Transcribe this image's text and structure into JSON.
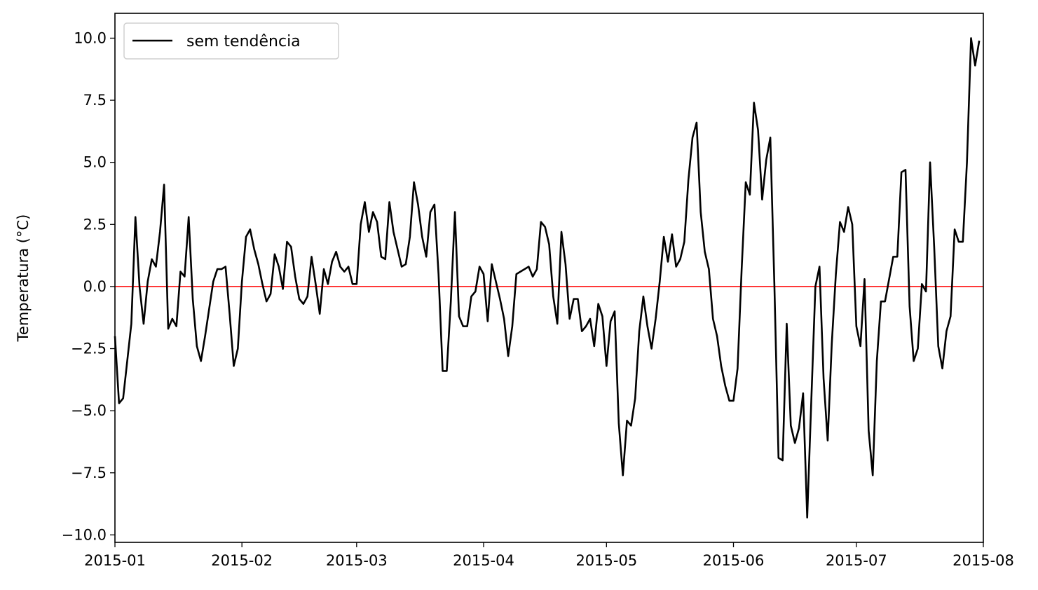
{
  "chart_data": {
    "type": "line",
    "title": "",
    "xlabel": "",
    "ylabel": "Temperatura (°C)",
    "xlim": [
      "2015-01-01",
      "2015-08-01"
    ],
    "ylim": [
      -10.3,
      11.0
    ],
    "x_ticks": [
      "2015-01",
      "2015-02",
      "2015-03",
      "2015-04",
      "2015-05",
      "2015-06",
      "2015-07",
      "2015-08"
    ],
    "y_ticks": [
      -10.0,
      -7.5,
      -5.0,
      -2.5,
      0.0,
      2.5,
      5.0,
      7.5,
      10.0
    ],
    "y_tick_labels": [
      "−10.0",
      "−7.5",
      "−5.0",
      "−2.5",
      "0.0",
      "2.5",
      "5.0",
      "7.5",
      "10.0"
    ],
    "grid": false,
    "legend": {
      "position": "top-left",
      "entries": [
        "sem tendência"
      ]
    },
    "reference_line": {
      "y": 0.0,
      "color": "#ff0000"
    },
    "series": [
      {
        "name": "sem tendência",
        "color": "#000000",
        "x": [
          "2015-01-01",
          "2015-01-02",
          "2015-01-03",
          "2015-01-04",
          "2015-01-05",
          "2015-01-06",
          "2015-01-07",
          "2015-01-08",
          "2015-01-09",
          "2015-01-10",
          "2015-01-11",
          "2015-01-12",
          "2015-01-13",
          "2015-01-14",
          "2015-01-15",
          "2015-01-16",
          "2015-01-17",
          "2015-01-18",
          "2015-01-19",
          "2015-01-20",
          "2015-01-21",
          "2015-01-22",
          "2015-01-23",
          "2015-01-24",
          "2015-01-25",
          "2015-01-26",
          "2015-01-27",
          "2015-01-28",
          "2015-01-29",
          "2015-01-30",
          "2015-01-31",
          "2015-02-01",
          "2015-02-02",
          "2015-02-03",
          "2015-02-04",
          "2015-02-05",
          "2015-02-06",
          "2015-02-07",
          "2015-02-08",
          "2015-02-09",
          "2015-02-10",
          "2015-02-11",
          "2015-02-12",
          "2015-02-13",
          "2015-02-14",
          "2015-02-15",
          "2015-02-16",
          "2015-02-17",
          "2015-02-18",
          "2015-02-19",
          "2015-02-20",
          "2015-02-21",
          "2015-02-22",
          "2015-02-23",
          "2015-02-24",
          "2015-02-25",
          "2015-02-26",
          "2015-02-27",
          "2015-02-28",
          "2015-03-01",
          "2015-03-02",
          "2015-03-03",
          "2015-03-04",
          "2015-03-05",
          "2015-03-06",
          "2015-03-07",
          "2015-03-08",
          "2015-03-09",
          "2015-03-10",
          "2015-03-11",
          "2015-03-12",
          "2015-03-13",
          "2015-03-14",
          "2015-03-15",
          "2015-03-16",
          "2015-03-17",
          "2015-03-18",
          "2015-03-19",
          "2015-03-20",
          "2015-03-21",
          "2015-03-22",
          "2015-03-23",
          "2015-03-24",
          "2015-03-25",
          "2015-03-26",
          "2015-03-27",
          "2015-03-28",
          "2015-03-29",
          "2015-03-30",
          "2015-03-31",
          "2015-04-01",
          "2015-04-02",
          "2015-04-03",
          "2015-04-04",
          "2015-04-05",
          "2015-04-06",
          "2015-04-07",
          "2015-04-08",
          "2015-04-09",
          "2015-04-10",
          "2015-04-11",
          "2015-04-12",
          "2015-04-13",
          "2015-04-14",
          "2015-04-15",
          "2015-04-16",
          "2015-04-17",
          "2015-04-18",
          "2015-04-19",
          "2015-04-20",
          "2015-04-21",
          "2015-04-22",
          "2015-04-23",
          "2015-04-24",
          "2015-04-25",
          "2015-04-26",
          "2015-04-27",
          "2015-04-28",
          "2015-04-29",
          "2015-04-30",
          "2015-05-01",
          "2015-05-02",
          "2015-05-03",
          "2015-05-04",
          "2015-05-05",
          "2015-05-06",
          "2015-05-07",
          "2015-05-08",
          "2015-05-09",
          "2015-05-10",
          "2015-05-11",
          "2015-05-12",
          "2015-05-13",
          "2015-05-14",
          "2015-05-15",
          "2015-05-16",
          "2015-05-17",
          "2015-05-18",
          "2015-05-19",
          "2015-05-20",
          "2015-05-21",
          "2015-05-22",
          "2015-05-23",
          "2015-05-24",
          "2015-05-25",
          "2015-05-26",
          "2015-05-27",
          "2015-05-28",
          "2015-05-29",
          "2015-05-30",
          "2015-05-31",
          "2015-06-01",
          "2015-06-02",
          "2015-06-03",
          "2015-06-04",
          "2015-06-05",
          "2015-06-06",
          "2015-06-07",
          "2015-06-08",
          "2015-06-09",
          "2015-06-10",
          "2015-06-11",
          "2015-06-12",
          "2015-06-13",
          "2015-06-14",
          "2015-06-15",
          "2015-06-16",
          "2015-06-17",
          "2015-06-18",
          "2015-06-19",
          "2015-06-20",
          "2015-06-21",
          "2015-06-22",
          "2015-06-23",
          "2015-06-24",
          "2015-06-25",
          "2015-06-26",
          "2015-06-27",
          "2015-06-28",
          "2015-06-29",
          "2015-06-30",
          "2015-07-01",
          "2015-07-02",
          "2015-07-03",
          "2015-07-04",
          "2015-07-05",
          "2015-07-06",
          "2015-07-07",
          "2015-07-08",
          "2015-07-09",
          "2015-07-10",
          "2015-07-11",
          "2015-07-12",
          "2015-07-13",
          "2015-07-14",
          "2015-07-15",
          "2015-07-16",
          "2015-07-17",
          "2015-07-18",
          "2015-07-19",
          "2015-07-20",
          "2015-07-21",
          "2015-07-22",
          "2015-07-23",
          "2015-07-24",
          "2015-07-25",
          "2015-07-26",
          "2015-07-27",
          "2015-07-28",
          "2015-07-29",
          "2015-07-30",
          "2015-07-31"
        ],
        "y": [
          -2.0,
          -4.7,
          -4.5,
          -3.0,
          -1.5,
          2.8,
          0.0,
          -1.5,
          0.2,
          1.1,
          0.8,
          2.2,
          4.1,
          -1.7,
          -1.3,
          -1.6,
          0.6,
          0.4,
          2.8,
          -0.5,
          -2.4,
          -3.0,
          -2.0,
          -0.9,
          0.2,
          0.7,
          0.7,
          0.8,
          -1.1,
          -3.2,
          -2.5,
          0.2,
          2.0,
          2.3,
          1.5,
          0.9,
          0.1,
          -0.6,
          -0.3,
          1.3,
          0.8,
          -0.1,
          1.8,
          1.6,
          0.4,
          -0.5,
          -0.7,
          -0.4,
          1.2,
          0.1,
          -1.1,
          0.7,
          0.1,
          1.0,
          1.4,
          0.8,
          0.6,
          0.8,
          0.1,
          0.1,
          2.5,
          3.4,
          2.2,
          3.0,
          2.6,
          1.2,
          1.1,
          3.4,
          2.2,
          1.5,
          0.8,
          0.9,
          2.0,
          4.2,
          3.3,
          2.0,
          1.2,
          3.0,
          3.3,
          0.5,
          -3.4,
          -3.4,
          -0.6,
          3.0,
          -1.2,
          -1.6,
          -1.6,
          -0.4,
          -0.2,
          0.8,
          0.5,
          -1.4,
          0.9,
          0.2,
          -0.5,
          -1.3,
          -2.8,
          -1.6,
          0.5,
          0.6,
          0.7,
          0.8,
          0.4,
          0.7,
          2.6,
          2.4,
          1.7,
          -0.4,
          -1.5,
          2.2,
          0.9,
          -1.3,
          -0.5,
          -0.5,
          -1.8,
          -1.6,
          -1.3,
          -2.4,
          -0.7,
          -1.2,
          -3.2,
          -1.4,
          -1.0,
          -5.5,
          -7.6,
          -5.4,
          -5.6,
          -4.5,
          -1.8,
          -0.4,
          -1.6,
          -2.5,
          -1.3,
          0.2,
          2.0,
          1.0,
          2.1,
          0.8,
          1.1,
          1.8,
          4.3,
          6.0,
          6.6,
          3.0,
          1.4,
          0.7,
          -1.3,
          -2.0,
          -3.2,
          -4.0,
          -4.6,
          -4.6,
          -3.3,
          0.7,
          4.2,
          3.7,
          7.4,
          6.3,
          3.5,
          5.1,
          6.0,
          0.0,
          -6.9,
          -7.0,
          -1.5,
          -5.6,
          -6.3,
          -5.7,
          -4.3,
          -9.3,
          -4.6,
          0.0,
          0.8,
          -3.7,
          -6.2,
          -2.3,
          0.5,
          2.6,
          2.2,
          3.2,
          2.5,
          -1.6,
          -2.4,
          0.3,
          -5.8,
          -7.6,
          -3.0,
          -0.6,
          -0.6,
          0.3,
          1.2,
          1.2,
          4.6,
          4.7,
          -0.8,
          -3.0,
          -2.5,
          0.1,
          -0.2,
          5.0,
          1.6,
          -2.4,
          -3.3,
          -1.8,
          -1.2,
          2.3,
          1.8,
          1.8,
          5.0,
          10.0,
          8.9,
          9.9
        ]
      }
    ]
  }
}
